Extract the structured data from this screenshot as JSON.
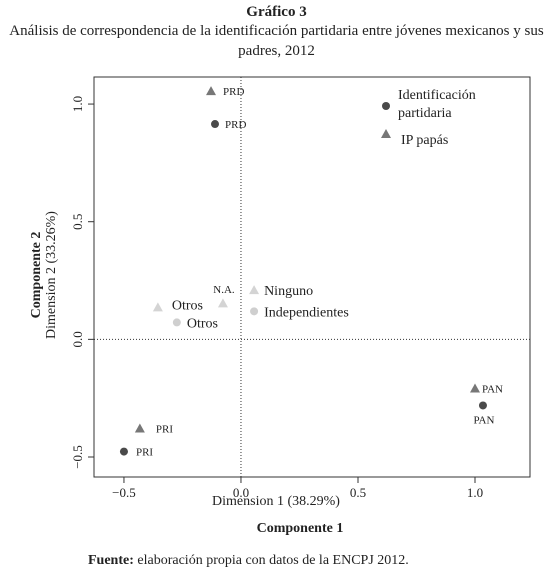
{
  "chart_data": {
    "type": "scatter",
    "figure_label": "Gráfico 3",
    "title": "Análisis de correspondencia de la identificación partidaria entre jóvenes mexicanos y sus padres, 2012",
    "xlabel": "Dimension 1 (38.29%)",
    "xlabel_title": "Componente 1",
    "ylabel": "Dimension 2 (33.26%)",
    "ylabel_title": "Componente 2",
    "xlim": [
      -0.628,
      1.235
    ],
    "ylim": [
      -0.585,
      1.115
    ],
    "xticks": [
      {
        "value": -0.5,
        "label": "−0.5"
      },
      {
        "value": 0,
        "label": "0.0"
      },
      {
        "value": 0.5,
        "label": "0.5"
      },
      {
        "value": 1,
        "label": "1.0"
      }
    ],
    "yticks": [
      {
        "value": -0.5,
        "label": "−0.5"
      },
      {
        "value": 0,
        "label": "0.0"
      },
      {
        "value": 0.5,
        "label": "0.5"
      },
      {
        "value": 1,
        "label": "1.0"
      }
    ],
    "vline": 0,
    "hline": 0,
    "legend": "upper right",
    "series": [
      {
        "name": "Identificación partidaria",
        "marker": "circle",
        "color": "#4a4a4a",
        "labels": [
          "PRD",
          "PRI",
          "PAN",
          "Otros",
          "Independientes"
        ],
        "x": [
          -0.111,
          -0.5,
          1.034,
          -0.274,
          0.056
        ],
        "values": [
          0.915,
          -0.477,
          -0.281,
          0.072,
          0.119
        ],
        "colors": [
          "#4a4a4a",
          "#4a4a4a",
          "#4a4a4a",
          "#cfcfcf",
          "#cfcfcf"
        ]
      },
      {
        "name": "IP papás",
        "marker": "triangle",
        "color": "#777777",
        "labels": [
          "PRD",
          "PRI",
          "PAN",
          "Otros",
          "N.A.",
          "Ninguno"
        ],
        "x": [
          -0.128,
          -0.432,
          1.0,
          -0.355,
          -0.077,
          0.056
        ],
        "values": [
          1.055,
          -0.379,
          -0.209,
          0.136,
          0.153,
          0.209
        ],
        "colors": [
          "#777777",
          "#777777",
          "#777777",
          "#d4d4d4",
          "#d4d4d4",
          "#d4d4d4"
        ]
      }
    ],
    "source_label": "Fuente:",
    "source_text": "elaboración propia con datos de la ENCPJ 2012."
  }
}
